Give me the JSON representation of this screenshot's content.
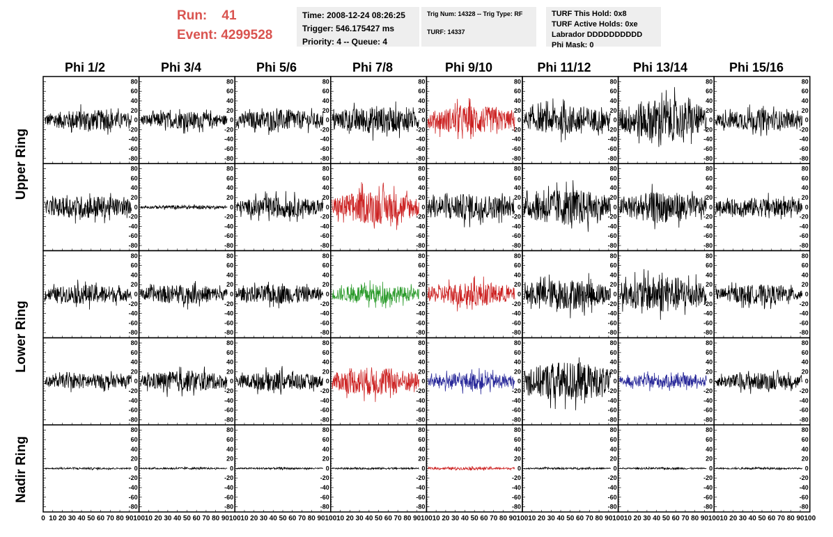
{
  "run_info": {
    "run_label": "Run:",
    "run_value": "41",
    "event_label": "Event:",
    "event_value": "4299528"
  },
  "time_box": {
    "time": "Time: 2008-12-24 08:26:25",
    "trigger": "Trigger: 546.175427 ms",
    "priority": "Priority: 4 -- Queue: 4"
  },
  "trig_box": {
    "trig": "Trig Num: 14328 -- Trig Type: RF",
    "turf": "TURF: 14337"
  },
  "turf_box": {
    "this_hold": "TURF This Hold: 0x8",
    "active_holds": "TURF Active Holds: 0xe",
    "labrador": "Labrador DDDDDDDDDD",
    "phi_mask": "Phi Mask: 0"
  },
  "columns": [
    "Phi 1/2",
    "Phi 3/4",
    "Phi 5/6",
    "Phi 7/8",
    "Phi 9/10",
    "Phi 11/12",
    "Phi 13/14",
    "Phi 15/16"
  ],
  "ring_labels": {
    "upper": "Upper Ring",
    "lower": "Lower Ring",
    "nadir": "Nadir Ring"
  },
  "colors": {
    "run_text": "#d9534f",
    "trace_default": "#000000",
    "trace_red": "#cc2222",
    "trace_green": "#2a9a2a",
    "trace_blue": "#2a2a9a",
    "info_bg": "#eeeeee"
  },
  "chart_data": {
    "type": "line",
    "y_ticks": [
      "80",
      "60",
      "40",
      "20",
      "0",
      "-20",
      "-40",
      "-60",
      "-80"
    ],
    "x_tick_labels": [
      "0",
      "10",
      "20",
      "30",
      "40",
      "50",
      "60",
      "70",
      "80",
      "90",
      "100"
    ],
    "ylim": [
      -85,
      85
    ],
    "xlim": [
      0,
      100
    ],
    "rows": 5,
    "cols": 8,
    "panels": [
      {
        "row": 0,
        "col": 0,
        "color": "black",
        "amplitude": 22
      },
      {
        "row": 0,
        "col": 1,
        "color": "black",
        "amplitude": 18
      },
      {
        "row": 0,
        "col": 2,
        "color": "black",
        "amplitude": 22
      },
      {
        "row": 0,
        "col": 3,
        "color": "black",
        "amplitude": 28
      },
      {
        "row": 0,
        "col": 4,
        "color": "red",
        "amplitude": 30
      },
      {
        "row": 0,
        "col": 5,
        "color": "black",
        "amplitude": 30
      },
      {
        "row": 0,
        "col": 6,
        "color": "black",
        "amplitude": 45
      },
      {
        "row": 0,
        "col": 7,
        "color": "black",
        "amplitude": 22
      },
      {
        "row": 1,
        "col": 0,
        "color": "black",
        "amplitude": 24
      },
      {
        "row": 1,
        "col": 1,
        "color": "black",
        "amplitude": 4
      },
      {
        "row": 1,
        "col": 2,
        "color": "black",
        "amplitude": 22
      },
      {
        "row": 1,
        "col": 3,
        "color": "red",
        "amplitude": 35
      },
      {
        "row": 1,
        "col": 4,
        "color": "black",
        "amplitude": 28
      },
      {
        "row": 1,
        "col": 5,
        "color": "black",
        "amplitude": 38
      },
      {
        "row": 1,
        "col": 6,
        "color": "black",
        "amplitude": 32
      },
      {
        "row": 1,
        "col": 7,
        "color": "black",
        "amplitude": 20
      },
      {
        "row": 2,
        "col": 0,
        "color": "black",
        "amplitude": 20
      },
      {
        "row": 2,
        "col": 1,
        "color": "black",
        "amplitude": 20
      },
      {
        "row": 2,
        "col": 2,
        "color": "black",
        "amplitude": 20
      },
      {
        "row": 2,
        "col": 3,
        "color": "green",
        "amplitude": 20
      },
      {
        "row": 2,
        "col": 4,
        "color": "red",
        "amplitude": 25
      },
      {
        "row": 2,
        "col": 5,
        "color": "black",
        "amplitude": 32
      },
      {
        "row": 2,
        "col": 6,
        "color": "black",
        "amplitude": 38
      },
      {
        "row": 2,
        "col": 7,
        "color": "black",
        "amplitude": 20
      },
      {
        "row": 3,
        "col": 0,
        "color": "black",
        "amplitude": 16
      },
      {
        "row": 3,
        "col": 1,
        "color": "black",
        "amplitude": 22
      },
      {
        "row": 3,
        "col": 2,
        "color": "black",
        "amplitude": 20
      },
      {
        "row": 3,
        "col": 3,
        "color": "red",
        "amplitude": 30
      },
      {
        "row": 3,
        "col": 4,
        "color": "blue",
        "amplitude": 18
      },
      {
        "row": 3,
        "col": 5,
        "color": "black",
        "amplitude": 42
      },
      {
        "row": 3,
        "col": 6,
        "color": "blue",
        "amplitude": 14
      },
      {
        "row": 3,
        "col": 7,
        "color": "black",
        "amplitude": 18
      },
      {
        "row": 4,
        "col": 0,
        "color": "black",
        "amplitude": 2
      },
      {
        "row": 4,
        "col": 1,
        "color": "black",
        "amplitude": 2
      },
      {
        "row": 4,
        "col": 2,
        "color": "black",
        "amplitude": 2
      },
      {
        "row": 4,
        "col": 3,
        "color": "black",
        "amplitude": 2
      },
      {
        "row": 4,
        "col": 4,
        "color": "red",
        "amplitude": 3
      },
      {
        "row": 4,
        "col": 5,
        "color": "black",
        "amplitude": 2
      },
      {
        "row": 4,
        "col": 6,
        "color": "black",
        "amplitude": 2
      },
      {
        "row": 4,
        "col": 7,
        "color": "black",
        "amplitude": 2
      }
    ]
  }
}
